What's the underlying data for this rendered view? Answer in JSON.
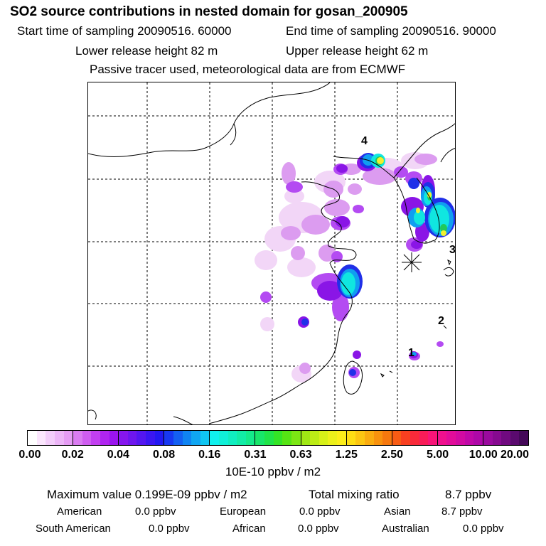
{
  "header": {
    "title": "SO2 source contributions in nested domain for gosan_200905",
    "start_label": "Start time of sampling 20090516. 60000",
    "end_label": "End time of sampling 20090516. 90000",
    "lower_label": "Lower release height   82 m",
    "upper_label": "Upper release height   62 m",
    "note": "Passive tracer used, meteorological data are from ECMWF"
  },
  "map": {
    "labels": [
      "4",
      "3",
      "2",
      "1"
    ],
    "colors": {
      "pale": "#f2d6f7",
      "light": "#dc9cf0",
      "mid": "#b44bf2",
      "deep": "#8a15e6",
      "blue": "#2030e8",
      "sky": "#109ef0",
      "cyan": "#10e6e0",
      "yellow": "#f0f030",
      "green": "#20c85a"
    }
  },
  "colorbar": {
    "ticks": [
      "0.00",
      "0.02",
      "0.04",
      "0.08",
      "0.16",
      "0.31",
      "0.63",
      "1.25",
      "2.50",
      "5.00",
      "10.00",
      "20.00"
    ],
    "colors": [
      [
        "#ffffff",
        "#fbe6fd",
        "#f3cdfa",
        "#ecb5f7",
        "#e59cf4"
      ],
      [
        "#da7cf1",
        "#cf5df0",
        "#c23ff0",
        "#b025f0",
        "#9a14ee"
      ],
      [
        "#8616ee",
        "#6e16ee",
        "#5416f0",
        "#3a16f2",
        "#2218f2"
      ],
      [
        "#1838f2",
        "#1460f2",
        "#1084f2",
        "#10a6f2",
        "#10c6f2"
      ],
      [
        "#10f0ee",
        "#10f0d8",
        "#10eec0",
        "#12eca6",
        "#14ea8a"
      ],
      [
        "#18e66a",
        "#20e448",
        "#34e426",
        "#56e414",
        "#7ce614"
      ],
      [
        "#a0e814",
        "#bcec16",
        "#d6f018",
        "#ecf01a",
        "#fcee1a"
      ],
      [
        "#fede14",
        "#fcc612",
        "#faac10",
        "#f8920e",
        "#f6780e"
      ],
      [
        "#f85c14",
        "#f84020",
        "#f82a3a",
        "#f81c58",
        "#f81478"
      ],
      [
        "#f0108e",
        "#e20c9a",
        "#d20aa2",
        "#c008a8",
        "#ae08a8"
      ],
      [
        "#9a0a9e",
        "#860a90",
        "#700a80",
        "#5a0a6e",
        "#440858"
      ]
    ],
    "unit": "10E-10 ppbv / m2"
  },
  "summary": {
    "max_label": "Maximum value  0.199E-09 ppbv / m2",
    "total_label": "Total mixing ratio",
    "total_value": "8.7 ppbv",
    "regions": {
      "american": {
        "name": "American",
        "value": "0.0 ppbv"
      },
      "european": {
        "name": "European",
        "value": "0.0 ppbv"
      },
      "asian": {
        "name": "Asian",
        "value": "8.7 ppbv"
      },
      "south_american": {
        "name": "South American",
        "value": "0.0 ppbv"
      },
      "african": {
        "name": "African",
        "value": "0.0 ppbv"
      },
      "australian": {
        "name": "Australian",
        "value": "0.0 ppbv"
      }
    }
  }
}
